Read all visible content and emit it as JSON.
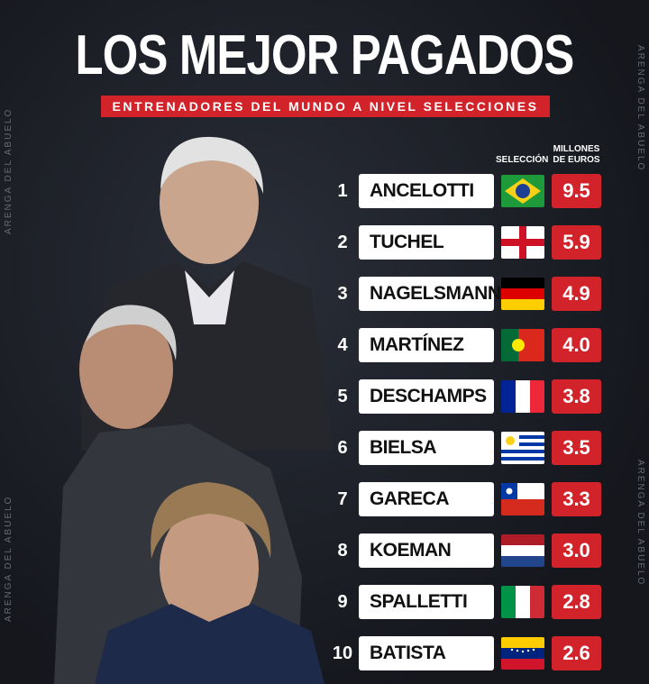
{
  "header": {
    "title": "LOS MEJOR PAGADOS",
    "subtitle": "ENTRENADORES DEL MUNDO A NIVEL SELECCIONES",
    "watermark": "ARENGA DEL ABUELO"
  },
  "table": {
    "columns": [
      "SELECCIÓN",
      "MILLONES DE EUROS"
    ],
    "rows": [
      {
        "rank": 1,
        "name": "ANCELOTTI",
        "value": "9.5"
      },
      {
        "rank": 2,
        "name": "TUCHEL",
        "value": "5.9"
      },
      {
        "rank": 3,
        "name": "NAGELSMANN",
        "value": "4.9"
      },
      {
        "rank": 4,
        "name": "MARTÍNEZ",
        "value": "4.0"
      },
      {
        "rank": 5,
        "name": "DESCHAMPS",
        "value": "3.8"
      },
      {
        "rank": 6,
        "name": "BIELSA",
        "value": "3.5"
      },
      {
        "rank": 7,
        "name": "GARECA",
        "value": "3.3"
      },
      {
        "rank": 8,
        "name": "KOEMAN",
        "value": "3.0"
      },
      {
        "rank": 9,
        "name": "SPALLETTI",
        "value": "2.8"
      },
      {
        "rank": 10,
        "name": "BATISTA",
        "value": "2.6"
      }
    ]
  }
}
